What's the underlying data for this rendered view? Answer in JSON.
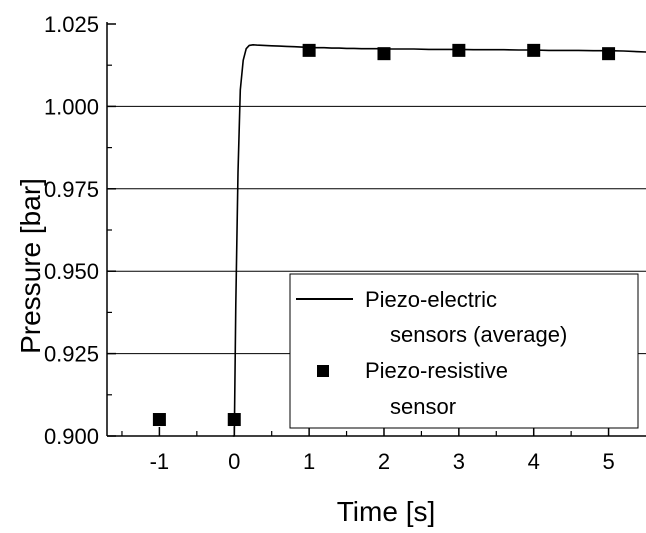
{
  "chart_data": {
    "type": "line",
    "xlabel": "Time [s]",
    "ylabel": "Pressure [bar]",
    "xlim": [
      -1.7,
      5.5
    ],
    "ylim": [
      0.9,
      1.025
    ],
    "x_ticks": [
      -1,
      0,
      1,
      2,
      3,
      4,
      5
    ],
    "x_tick_labels": [
      "-1",
      "0",
      "1",
      "2",
      "3",
      "4",
      "5"
    ],
    "y_ticks": [
      0.9,
      0.925,
      0.95,
      0.975,
      1.0,
      1.025
    ],
    "y_tick_labels": [
      "0.900",
      "0.925",
      "0.950",
      "0.975",
      "1.000",
      "1.025"
    ],
    "horizontal_gridlines": [
      0.925,
      0.95,
      0.975,
      1.0
    ],
    "legend_position": "bottom-right",
    "series": [
      {
        "name": "Piezo-electric sensors (average)",
        "legend_lines": [
          "Piezo-electric",
          "sensors (average)"
        ],
        "style": "line",
        "color": "#000000",
        "x": [
          -0.02,
          0.0,
          0.02,
          0.05,
          0.08,
          0.12,
          0.16,
          0.2,
          0.25,
          0.3,
          0.4,
          0.5,
          0.6,
          0.7,
          0.8,
          0.9,
          1.0,
          1.1,
          1.2,
          1.3,
          1.4,
          1.5,
          1.6,
          1.7,
          1.8,
          1.9,
          2.0,
          2.2,
          2.4,
          2.6,
          2.8,
          3.0,
          3.2,
          3.4,
          3.6,
          3.8,
          4.0,
          4.2,
          4.4,
          4.6,
          4.8,
          5.0,
          5.2,
          5.4,
          5.5
        ],
        "y": [
          0.9,
          0.9,
          0.94,
          0.98,
          1.005,
          1.014,
          1.0175,
          1.0185,
          1.0187,
          1.0186,
          1.0185,
          1.0184,
          1.0183,
          1.0182,
          1.0181,
          1.018,
          1.0179,
          1.0178,
          1.0178,
          1.0177,
          1.0177,
          1.0176,
          1.0176,
          1.0175,
          1.0175,
          1.0175,
          1.0174,
          1.0174,
          1.0174,
          1.0173,
          1.0173,
          1.0173,
          1.0172,
          1.0172,
          1.0172,
          1.0171,
          1.0171,
          1.017,
          1.017,
          1.017,
          1.0169,
          1.0169,
          1.0168,
          1.0166,
          1.0165
        ]
      },
      {
        "name": "Piezo-resistive sensor",
        "legend_lines": [
          "Piezo-resistive",
          "sensor"
        ],
        "style": "marker-square",
        "color": "#000000",
        "x": [
          -1,
          0,
          1,
          2,
          3,
          4,
          5
        ],
        "y": [
          0.905,
          0.905,
          1.017,
          1.016,
          1.017,
          1.017,
          1.016
        ]
      }
    ]
  }
}
